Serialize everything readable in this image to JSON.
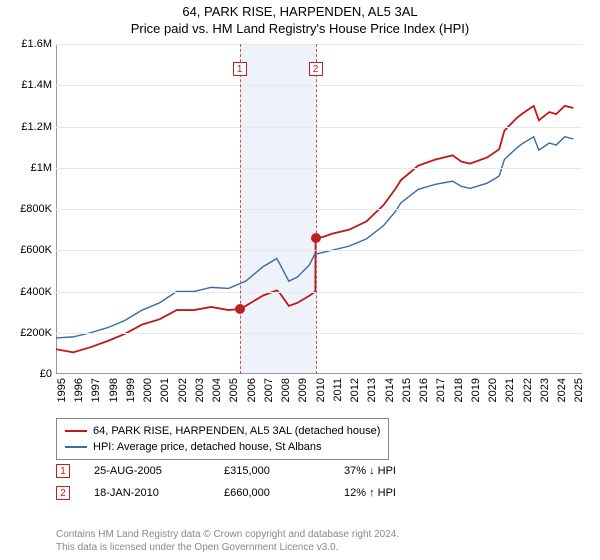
{
  "title": {
    "line1": "64, PARK RISE, HARPENDEN, AL5 3AL",
    "line2": "Price paid vs. HM Land Registry's House Price Index (HPI)"
  },
  "chart": {
    "type": "line",
    "x_domain": [
      1995,
      2025.5
    ],
    "y_domain": [
      0,
      1600000
    ],
    "y_ticks": [
      0,
      200000,
      400000,
      600000,
      800000,
      1000000,
      1200000,
      1400000,
      1600000
    ],
    "y_tick_labels": [
      "£0",
      "£200K",
      "£400K",
      "£600K",
      "£800K",
      "£1M",
      "£1.2M",
      "£1.4M",
      "£1.6M"
    ],
    "x_ticks": [
      1995,
      1996,
      1997,
      1998,
      1999,
      2000,
      2001,
      2002,
      2003,
      2004,
      2005,
      2006,
      2007,
      2008,
      2009,
      2010,
      2011,
      2012,
      2013,
      2014,
      2015,
      2016,
      2017,
      2018,
      2019,
      2020,
      2021,
      2022,
      2023,
      2024,
      2025
    ],
    "grid_color": "#e8e8e8",
    "axis_color": "#999999",
    "background_color": "#ffffff",
    "shade_band": {
      "x_start": 2005.65,
      "x_end": 2010.05,
      "color": "#eef2fa"
    },
    "sale_vlines": [
      {
        "x": 2005.65,
        "color": "#d05050",
        "style": "dashed"
      },
      {
        "x": 2010.05,
        "color": "#d05050",
        "style": "dashed"
      }
    ],
    "sale_markers": [
      {
        "id": "1",
        "x": 2005.65,
        "y": 315000,
        "dot_color": "#c02020",
        "box_color": "#c02020",
        "box_y_offset": -240000
      },
      {
        "id": "2",
        "x": 2010.05,
        "y": 660000,
        "dot_color": "#c02020",
        "box_color": "#c02020",
        "box_y_offset": -570000
      }
    ],
    "series": [
      {
        "name": "property",
        "label": "64, PARK RISE, HARPENDEN, AL5 3AL (detached house)",
        "color": "#c01818",
        "line_width": 1.8,
        "data": [
          [
            1995,
            120000
          ],
          [
            1996,
            105000
          ],
          [
            1997,
            130000
          ],
          [
            1998,
            160000
          ],
          [
            1999,
            195000
          ],
          [
            2000,
            240000
          ],
          [
            2001,
            265000
          ],
          [
            2002,
            310000
          ],
          [
            2003,
            310000
          ],
          [
            2004,
            325000
          ],
          [
            2005,
            310000
          ],
          [
            2005.65,
            315000
          ],
          [
            2006,
            330000
          ],
          [
            2007,
            380000
          ],
          [
            2007.8,
            405000
          ],
          [
            2008,
            390000
          ],
          [
            2008.5,
            330000
          ],
          [
            2009,
            345000
          ],
          [
            2009.7,
            380000
          ],
          [
            2010.04,
            400000
          ],
          [
            2010.05,
            660000
          ],
          [
            2010.5,
            665000
          ],
          [
            2011,
            680000
          ],
          [
            2012,
            700000
          ],
          [
            2013,
            740000
          ],
          [
            2014,
            820000
          ],
          [
            2014.7,
            900000
          ],
          [
            2015,
            940000
          ],
          [
            2016,
            1010000
          ],
          [
            2017,
            1040000
          ],
          [
            2018,
            1060000
          ],
          [
            2018.5,
            1030000
          ],
          [
            2019,
            1020000
          ],
          [
            2020,
            1050000
          ],
          [
            2020.7,
            1090000
          ],
          [
            2021,
            1180000
          ],
          [
            2021.7,
            1240000
          ],
          [
            2022,
            1260000
          ],
          [
            2022.7,
            1300000
          ],
          [
            2023,
            1230000
          ],
          [
            2023.6,
            1270000
          ],
          [
            2024,
            1260000
          ],
          [
            2024.5,
            1300000
          ],
          [
            2025,
            1290000
          ]
        ]
      },
      {
        "name": "hpi",
        "label": "HPI: Average price, detached house, St Albans",
        "color": "#3a6aa8",
        "line_width": 1.4,
        "data": [
          [
            1995,
            175000
          ],
          [
            1996,
            180000
          ],
          [
            1997,
            200000
          ],
          [
            1998,
            225000
          ],
          [
            1999,
            260000
          ],
          [
            2000,
            310000
          ],
          [
            2001,
            345000
          ],
          [
            2002,
            400000
          ],
          [
            2003,
            400000
          ],
          [
            2004,
            420000
          ],
          [
            2005,
            415000
          ],
          [
            2006,
            450000
          ],
          [
            2007,
            520000
          ],
          [
            2007.8,
            560000
          ],
          [
            2008,
            530000
          ],
          [
            2008.5,
            450000
          ],
          [
            2009,
            470000
          ],
          [
            2009.7,
            530000
          ],
          [
            2010,
            580000
          ],
          [
            2010.5,
            590000
          ],
          [
            2011,
            600000
          ],
          [
            2012,
            620000
          ],
          [
            2013,
            655000
          ],
          [
            2014,
            720000
          ],
          [
            2014.7,
            790000
          ],
          [
            2015,
            830000
          ],
          [
            2016,
            895000
          ],
          [
            2017,
            920000
          ],
          [
            2018,
            935000
          ],
          [
            2018.5,
            910000
          ],
          [
            2019,
            900000
          ],
          [
            2020,
            925000
          ],
          [
            2020.7,
            960000
          ],
          [
            2021,
            1040000
          ],
          [
            2021.7,
            1095000
          ],
          [
            2022,
            1115000
          ],
          [
            2022.7,
            1150000
          ],
          [
            2023,
            1085000
          ],
          [
            2023.6,
            1120000
          ],
          [
            2024,
            1110000
          ],
          [
            2024.5,
            1150000
          ],
          [
            2025,
            1140000
          ]
        ]
      }
    ]
  },
  "legend": {
    "items": [
      {
        "color": "#c01818",
        "label": "64, PARK RISE, HARPENDEN, AL5 3AL (detached house)"
      },
      {
        "color": "#3a6aa8",
        "label": "HPI: Average price, detached house, St Albans"
      }
    ]
  },
  "sales": [
    {
      "id": "1",
      "date": "25-AUG-2005",
      "price": "£315,000",
      "hpi_delta": "37% ↓ HPI",
      "color": "#c02020"
    },
    {
      "id": "2",
      "date": "18-JAN-2010",
      "price": "£660,000",
      "hpi_delta": "12% ↑ HPI",
      "color": "#c02020"
    }
  ],
  "footer": {
    "line1": "Contains HM Land Registry data © Crown copyright and database right 2024.",
    "line2": "This data is licensed under the Open Government Licence v3.0."
  }
}
